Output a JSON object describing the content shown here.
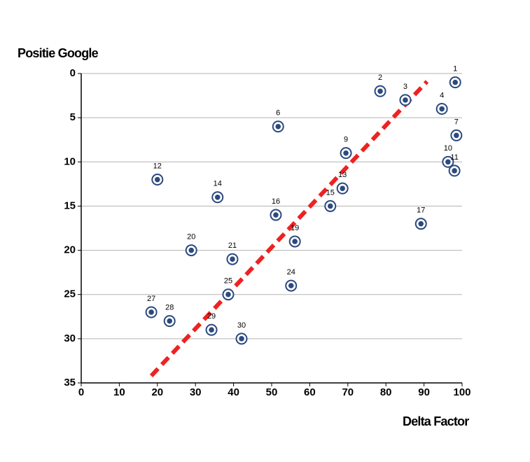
{
  "chart_data": {
    "type": "scatter",
    "y_axis_label": "Positie Google",
    "x_axis_label": "Delta Factor",
    "series": [
      {
        "color": "#2b4a7e",
        "x": [
          98.2,
          78.5,
          85.1,
          94.7,
          51.7,
          98.5,
          69.5,
          96.3,
          98.0,
          20.0,
          68.6,
          35.8,
          65.4,
          51.1,
          89.2,
          56.1,
          28.9,
          39.7,
          55.1,
          38.6,
          18.4,
          23.2,
          34.2,
          42.1
        ],
        "values": [
          1,
          2,
          3,
          4,
          6,
          7,
          9,
          10,
          11,
          12,
          13,
          14,
          15,
          16,
          17,
          19,
          20,
          21,
          24,
          25,
          27,
          28,
          29,
          30
        ],
        "point_labels": [
          "1",
          "2",
          "3",
          "4",
          "6",
          "7",
          "9",
          "10",
          "11",
          "12",
          "13",
          "14",
          "15",
          "16",
          "17",
          "19",
          "20",
          "21",
          "24",
          "25",
          "27",
          "28",
          "29",
          "30"
        ]
      }
    ],
    "trend_line": {
      "color": "#ee2222",
      "x": [
        18.4,
        90.8
      ],
      "y": [
        34.2,
        0.9
      ]
    },
    "xlim": [
      0,
      100
    ],
    "xticks": [
      0,
      10,
      20,
      30,
      40,
      50,
      60,
      70,
      80,
      90,
      100
    ],
    "ylim": [
      0,
      35
    ],
    "yticks": [
      0,
      5,
      10,
      15,
      20,
      25,
      30,
      35
    ],
    "y_inverted": true,
    "grid": true
  }
}
